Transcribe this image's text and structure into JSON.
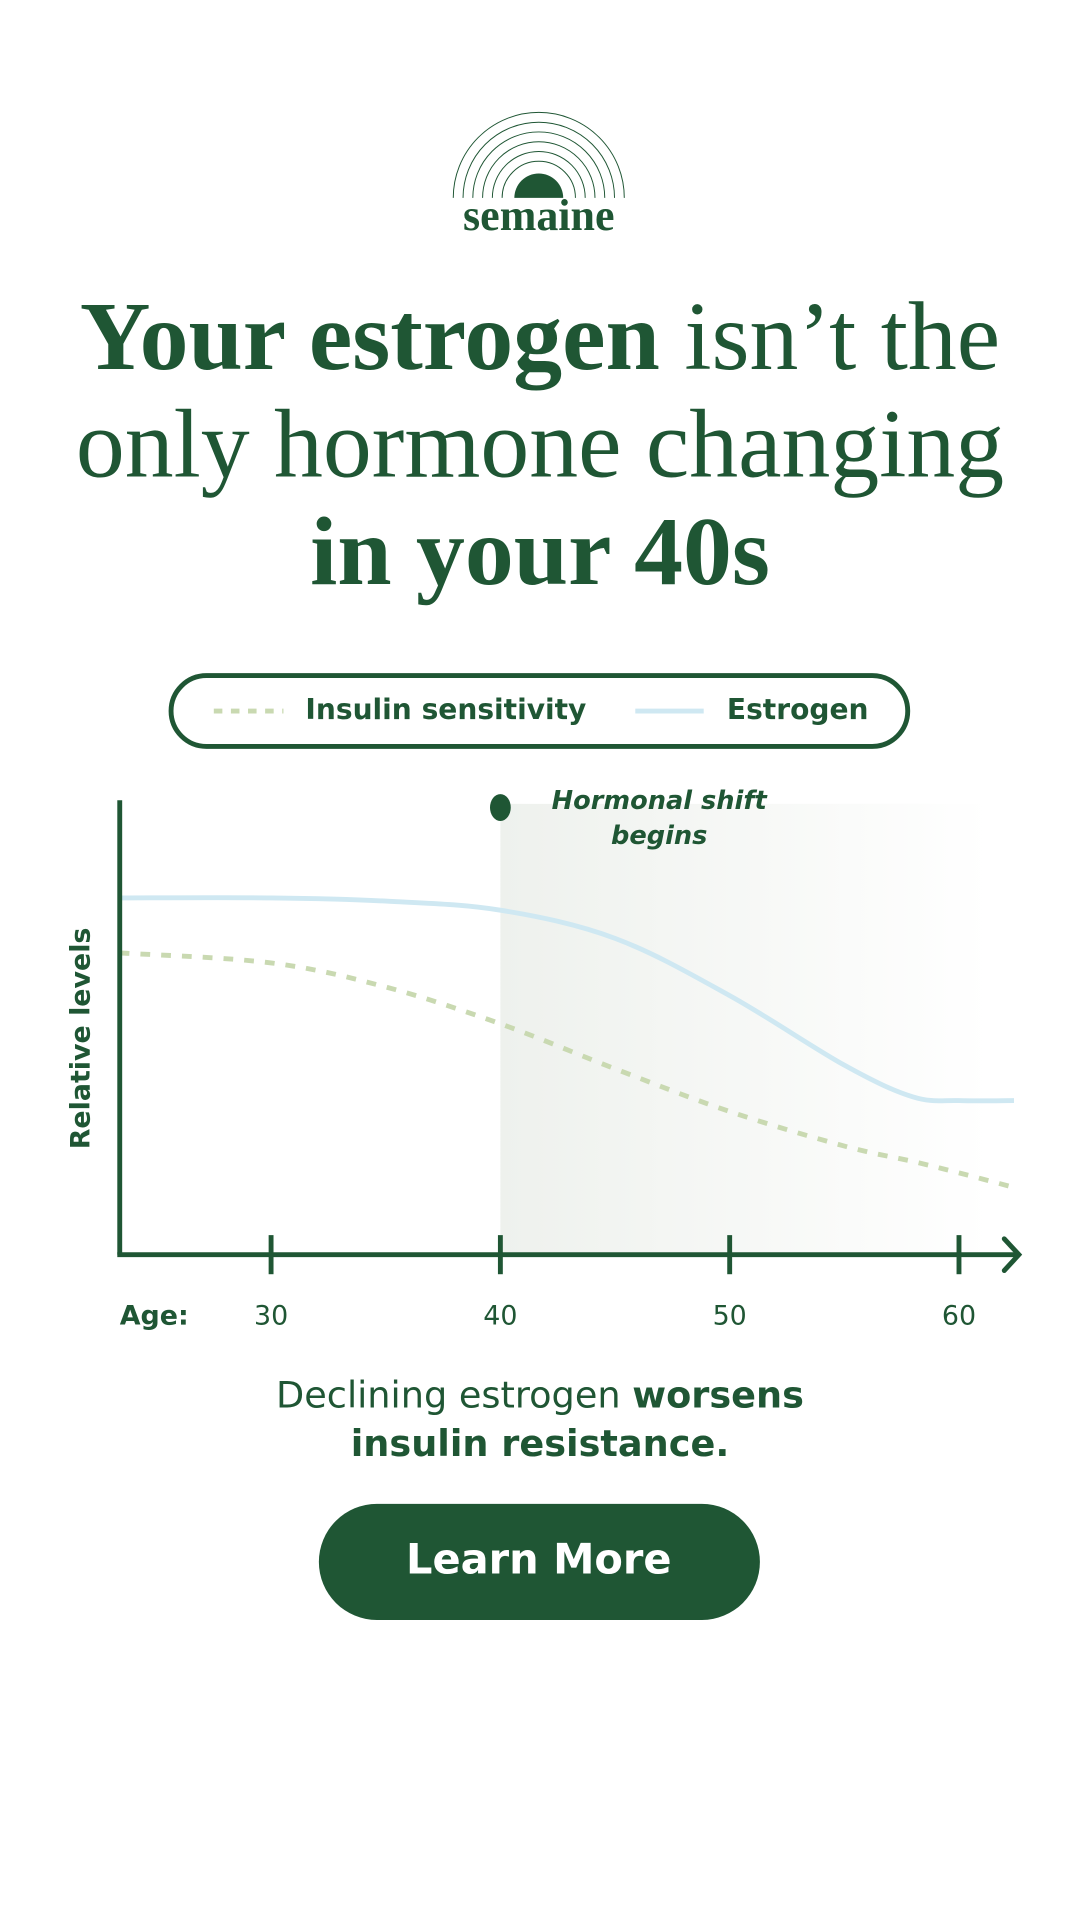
{
  "brand": "semaine",
  "headline": [
    {
      "text": "Your estrogen",
      "bold": true
    },
    {
      "text": " isn’t the only hormone changing "
    },
    {
      "text": "in your 40s",
      "bold": true
    }
  ],
  "chart_data": {
    "type": "line",
    "xlabel": "Age:",
    "ylabel": "Relative levels",
    "x": [
      23.4,
      30,
      35,
      40,
      45,
      50,
      55,
      58,
      60,
      62.4
    ],
    "xlim": [
      23.4,
      62.4
    ],
    "xticks": [
      30,
      40,
      50,
      60
    ],
    "ylim": [
      0,
      100
    ],
    "series": [
      {
        "name": "Insulin sensitivity",
        "color": "#c9d9b1",
        "dashed": true,
        "values": [
          66.4,
          64.2,
          58.9,
          50.8,
          40.9,
          31.5,
          23.9,
          20.5,
          18,
          14.8
        ]
      },
      {
        "name": "Estrogen",
        "color": "#cfe8f2",
        "dashed": false,
        "values": [
          78.5,
          78.5,
          77.8,
          75.8,
          69.6,
          57,
          41.7,
          34.7,
          33.9,
          33.9
        ]
      }
    ],
    "annotation": {
      "text": "Hormonal shift begins",
      "x": 40
    }
  },
  "caption": [
    {
      "text": "Declining estrogen "
    },
    {
      "text": "worsens insulin resistance.",
      "bold": true
    }
  ],
  "button": "Learn More"
}
